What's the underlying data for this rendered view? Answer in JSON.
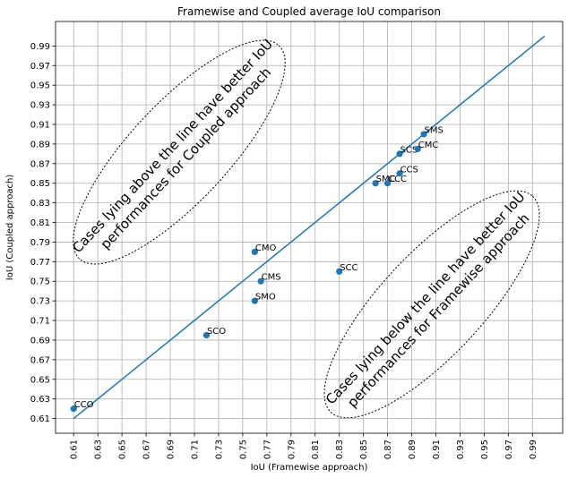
{
  "chart_data": {
    "type": "scatter",
    "title": "Framewise and Coupled average IoU comparison",
    "xlabel": "IoU (Framewise approach)",
    "ylabel": "IoU (Coupled approach)",
    "xlim": [
      0.595,
      1.015
    ],
    "ylim": [
      0.595,
      1.015
    ],
    "xticks": [
      0.61,
      0.63,
      0.65,
      0.67,
      0.69,
      0.71,
      0.73,
      0.75,
      0.77,
      0.79,
      0.81,
      0.83,
      0.85,
      0.87,
      0.89,
      0.91,
      0.93,
      0.95,
      0.97,
      0.99
    ],
    "yticks": [
      0.61,
      0.63,
      0.65,
      0.67,
      0.69,
      0.71,
      0.73,
      0.75,
      0.77,
      0.79,
      0.81,
      0.83,
      0.85,
      0.87,
      0.89,
      0.91,
      0.93,
      0.95,
      0.97,
      0.99
    ],
    "grid": true,
    "points": [
      {
        "label": "CCO",
        "x": 0.61,
        "y": 0.62
      },
      {
        "label": "SCO",
        "x": 0.72,
        "y": 0.695
      },
      {
        "label": "SMO",
        "x": 0.76,
        "y": 0.73
      },
      {
        "label": "CMS",
        "x": 0.765,
        "y": 0.75
      },
      {
        "label": "CMO",
        "x": 0.76,
        "y": 0.78
      },
      {
        "label": "SCC",
        "x": 0.83,
        "y": 0.76
      },
      {
        "label": "SMC",
        "x": 0.86,
        "y": 0.85
      },
      {
        "label": "CCC",
        "x": 0.87,
        "y": 0.85
      },
      {
        "label": "CCS",
        "x": 0.88,
        "y": 0.86
      },
      {
        "label": "SCS",
        "x": 0.88,
        "y": 0.88
      },
      {
        "label": "CMC",
        "x": 0.895,
        "y": 0.885
      },
      {
        "label": "SMS",
        "x": 0.9,
        "y": 0.9
      }
    ],
    "reference_line": {
      "x": [
        0.61,
        1.0
      ],
      "y": [
        0.61,
        1.0
      ]
    },
    "annotations": [
      {
        "id": "above",
        "lines": [
          "Cases lying above the line have better IoU",
          "performances for Coupled approach"
        ]
      },
      {
        "id": "below",
        "lines": [
          "Cases lying below the line have better IoU",
          "performances for Framewise approach"
        ]
      }
    ],
    "colors": {
      "points": "#1f77b4",
      "line": "#1f77b4",
      "grid": "#b0b0b0"
    }
  }
}
